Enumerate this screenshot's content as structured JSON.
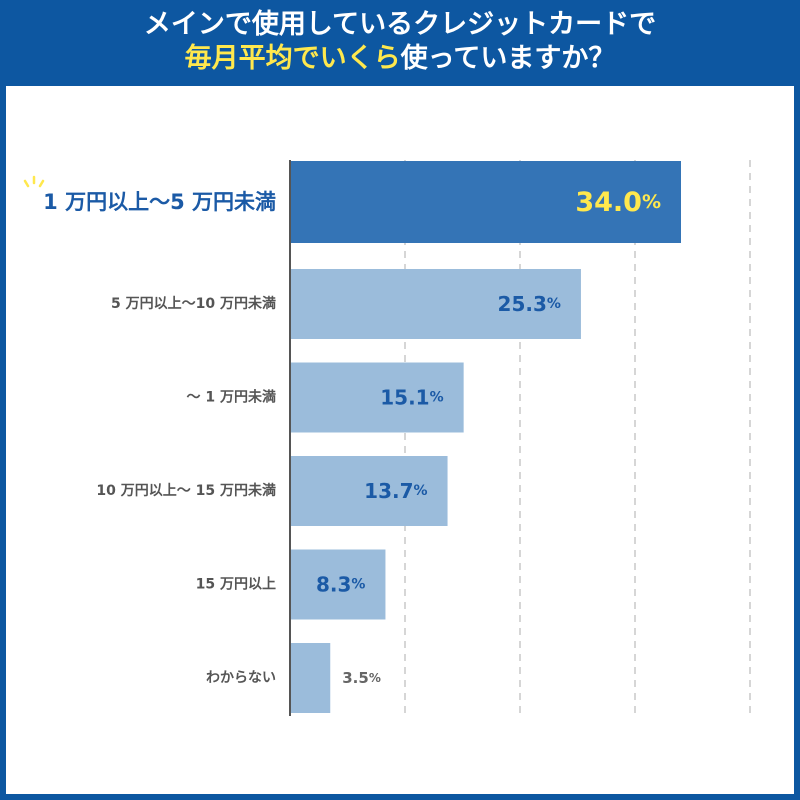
{
  "title": {
    "line1": "メインで使用しているクレジットカードで",
    "line2_highlight": "毎月平均でいくら",
    "line2_rest": "使っていますか？"
  },
  "colors": {
    "background": "#0d57a1",
    "title_highlight": "#ffe84d",
    "bar_highlight": "#3474b6",
    "bar_normal": "#9bbcdb",
    "value_highlight": "#ffe84d",
    "value_normal": "#1b5aa6",
    "value_outside": "#666666",
    "label_highlight": "#1b5aa6",
    "label_normal": "#555555"
  },
  "chart_data": {
    "type": "bar",
    "orientation": "horizontal",
    "categories": [
      "1 万円以上〜5 万円未満",
      "5 万円以上〜10 万円未満",
      "〜 1 万円未満",
      "10 万円以上〜 15 万円未満",
      "15 万円以上",
      "わからない"
    ],
    "values": [
      34.0,
      25.3,
      15.1,
      13.7,
      8.3,
      3.5
    ],
    "value_labels": [
      "34.0",
      "25.3",
      "15.1",
      "13.7",
      "8.3",
      "3.5"
    ],
    "unit": "%",
    "highlight_index": 0,
    "xlim": [
      0,
      40
    ],
    "grid": true
  }
}
